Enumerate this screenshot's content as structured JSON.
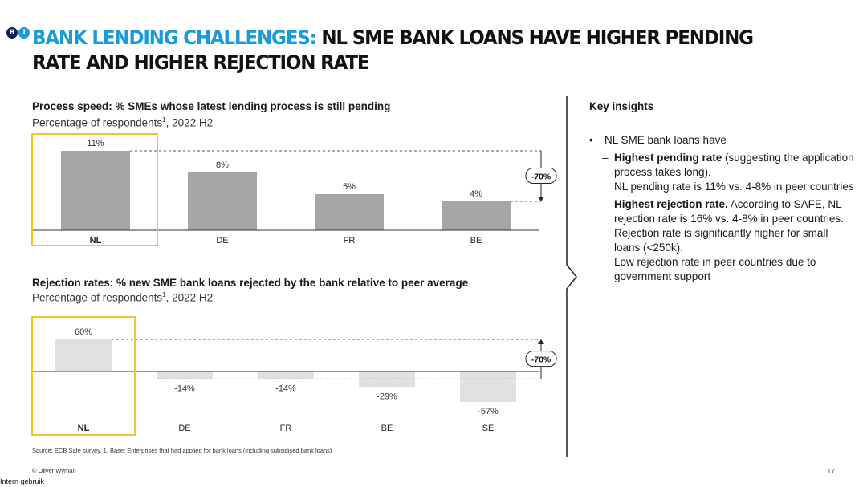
{
  "header": {
    "badges": [
      "B",
      "1"
    ],
    "title_accent": "BANK LENDING CHALLENGES:",
    "title_rest": " NL SME BANK LOANS HAVE HIGHER PENDING RATE AND HIGHER REJECTION RATE"
  },
  "chart_data": [
    {
      "type": "bar",
      "title": "Process speed: % SMEs whose  latest lending process is still pending",
      "subtitle": "Percentage of respondents",
      "subtitle_sup": "1",
      "subtitle_suffix": ", 2022 H2",
      "categories": [
        "NL",
        "DE",
        "FR",
        "BE"
      ],
      "values": [
        11,
        8,
        5,
        4
      ],
      "labels": [
        "11%",
        "8%",
        "5%",
        "4%"
      ],
      "ylim": [
        0,
        11
      ],
      "highlight": "NL",
      "annotation": "-70%",
      "colors": {
        "bar": "#a6a6a6",
        "highlight_box": "#f5c531"
      }
    },
    {
      "type": "bar",
      "title": "Rejection rates: % new SME bank loans rejected by the bank relative to peer average",
      "subtitle": "Percentage of respondents",
      "subtitle_sup": "1",
      "subtitle_suffix": ", 2022 H2",
      "categories": [
        "NL",
        "DE",
        "FR",
        "BE",
        "SE"
      ],
      "values": [
        60,
        -14,
        -14,
        -29,
        -57
      ],
      "labels": [
        "60%",
        "-14%",
        "-14%",
        "-29%",
        "-57%"
      ],
      "ylim": [
        -57,
        60
      ],
      "highlight": "NL",
      "annotation": "-70%",
      "colors": {
        "bar": "#e0e0e0",
        "highlight_box": "#f5c531"
      }
    }
  ],
  "insights": {
    "title": "Key insights",
    "bullet": "NL SME bank loans have",
    "items": [
      {
        "bold": "Highest pending rate",
        "text": " (suggesting the application process takes long).",
        "extra": "NL pending rate is 11% vs. 4-8% in peer countries"
      },
      {
        "bold": "Highest rejection rate.",
        "text": " According to SAFE, NL rejection rate is 16% vs. 4-8% in peer countries. Rejection rate is significantly higher for small loans (<250k).",
        "extra": "Low rejection rate in peer countries due to government support"
      }
    ]
  },
  "footer": {
    "source": "Source: ECB Safe survey. 1. Base: Enterprises that had applied for bank loans (including subsidised bank loans)",
    "copyright": "© Oliver Wyman",
    "page": "17",
    "classification": "Intern gebruik"
  }
}
